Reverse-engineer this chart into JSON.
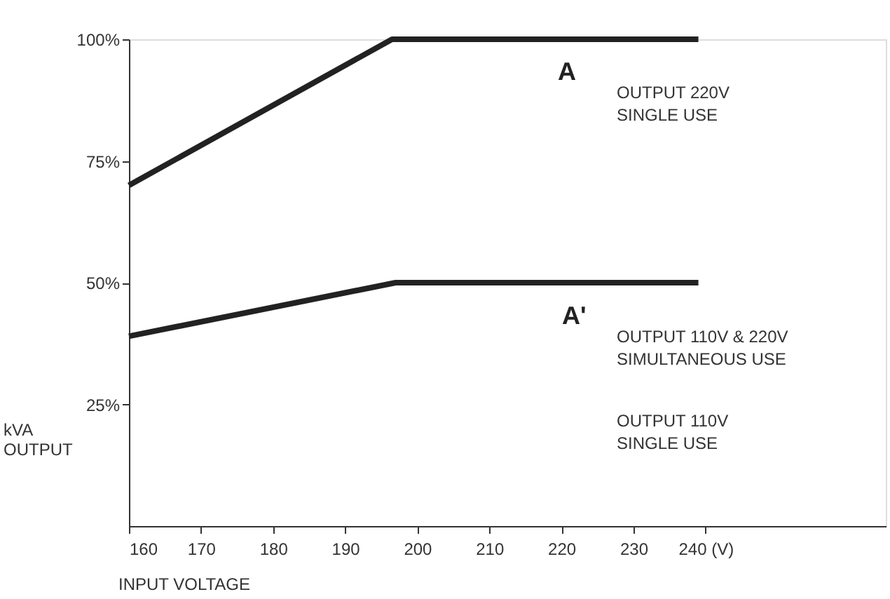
{
  "chart_data": {
    "type": "line",
    "xlabel": "INPUT VOLTAGE",
    "ylabel": "kVA\nOUTPUT",
    "xlim": [
      160,
      265
    ],
    "xticks": [
      160,
      170,
      180,
      190,
      200,
      210,
      220,
      230,
      {
        "value": 240,
        "label": "240 (V)"
      }
    ],
    "ylim": [
      0,
      100
    ],
    "yticks": [
      {
        "value": 25,
        "label": "25%"
      },
      {
        "value": 50,
        "label": "50%"
      },
      {
        "value": 75,
        "label": "75%"
      },
      {
        "value": 100,
        "label": "100%"
      }
    ],
    "grid": false,
    "marker": "none",
    "line_style": "solid",
    "series": [
      {
        "color": "#222222",
        "x": [
          160,
          196.5,
          239
        ],
        "values": [
          70,
          100,
          100
        ]
      },
      {
        "color": "#222222",
        "x": [
          160,
          197,
          239
        ],
        "values": [
          39,
          50,
          50
        ]
      }
    ],
    "annotations": [
      "A",
      "OUTPUT 220V\nSINGLE USE",
      "A'",
      "OUTPUT 110V & 220V\nSIMULTANEOUS USE",
      "OUTPUT 110V\nSINGLE USE"
    ]
  }
}
